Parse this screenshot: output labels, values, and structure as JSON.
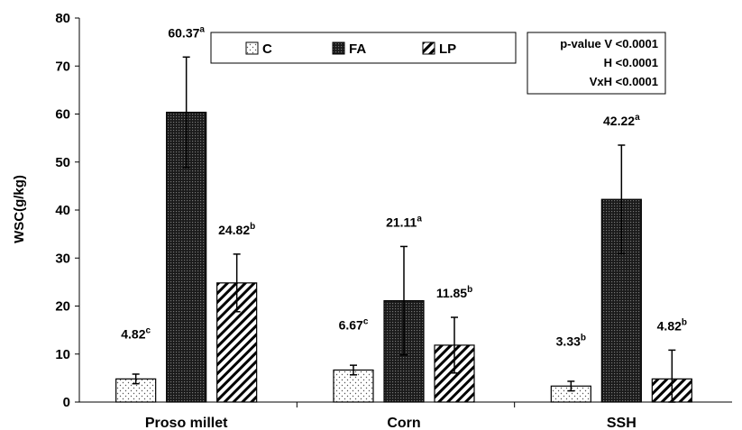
{
  "chart_data": {
    "type": "bar",
    "ylabel": "WSC(g/kg)",
    "xlabel": "",
    "ylim": [
      0,
      80
    ],
    "yticks": [
      0,
      10,
      20,
      30,
      40,
      50,
      60,
      70,
      80
    ],
    "grid": false,
    "legend_position": "top-center",
    "categories": [
      "Proso millet",
      "Corn",
      "SSH"
    ],
    "series": [
      {
        "name": "C",
        "pattern": "dots",
        "values": [
          4.82,
          6.67,
          3.33
        ],
        "errors": [
          1.0,
          1.0,
          1.0
        ],
        "labels": [
          "4.82",
          "6.67",
          "3.33"
        ],
        "superscripts": [
          "c",
          "c",
          "b"
        ]
      },
      {
        "name": "FA",
        "pattern": "dense-grid",
        "values": [
          60.37,
          21.11,
          42.22
        ],
        "errors": [
          11.5,
          11.3,
          11.3
        ],
        "labels": [
          "60.37",
          "21.11",
          "42.22"
        ],
        "superscripts": [
          "a",
          "a",
          "a"
        ]
      },
      {
        "name": "LP",
        "pattern": "diagonal",
        "values": [
          24.82,
          11.85,
          4.82
        ],
        "errors": [
          6.0,
          5.8,
          6.0
        ],
        "labels": [
          "24.82",
          "11.85",
          "4.82"
        ],
        "superscripts": [
          "b",
          "b",
          "b"
        ]
      }
    ],
    "stats_box": {
      "lines": [
        "p-value  V  <0.0001",
        "H  <0.0001",
        "VxH <0.0001"
      ]
    },
    "colors": {
      "bar_stroke": "#000000",
      "dot_fill": "#555555",
      "grid_fill": "#222222"
    }
  }
}
